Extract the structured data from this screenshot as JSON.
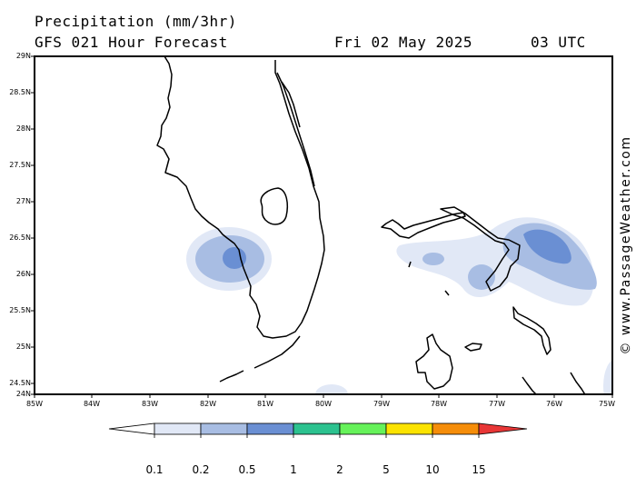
{
  "header": {
    "title": "Precipitation (mm/3hr)",
    "subtitle": "GFS 021 Hour Forecast",
    "date": "Fri 02 May 2025",
    "time": "03 UTC"
  },
  "map": {
    "lat_labels": [
      "29N",
      "28.5N",
      "28N",
      "27.5N",
      "27N",
      "26.5N",
      "26N",
      "25.5N",
      "25N",
      "24.5N",
      "24N"
    ],
    "lon_labels": [
      "85W",
      "84W",
      "83W",
      "82W",
      "81W",
      "80W",
      "79W",
      "78W",
      "77W",
      "76W",
      "75W"
    ],
    "land_color": "#ffffff",
    "coast_color": "#000000"
  },
  "colorbar": {
    "labels": [
      "0.1",
      "0.2",
      "0.5",
      "1",
      "2",
      "5",
      "10",
      "15"
    ],
    "colors": [
      "#ffffff",
      "#e1e8f6",
      "#a8bde3",
      "#6a8fd3",
      "#2cc28f",
      "#66f25a",
      "#fbe300",
      "#f58d09",
      "#e83636"
    ]
  },
  "credit": "© www.PassageWeather.com"
}
